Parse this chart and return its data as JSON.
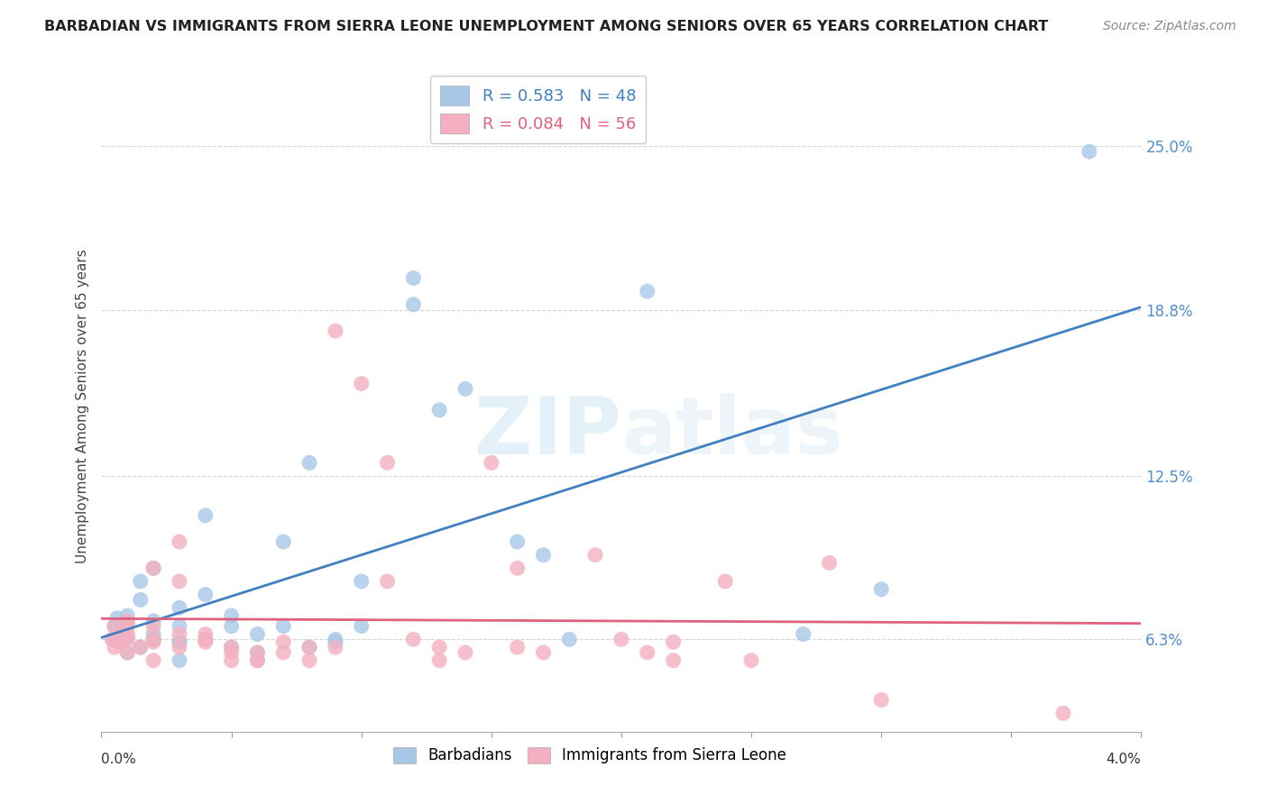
{
  "title": "BARBADIAN VS IMMIGRANTS FROM SIERRA LEONE UNEMPLOYMENT AMONG SENIORS OVER 65 YEARS CORRELATION CHART",
  "source": "Source: ZipAtlas.com",
  "ylabel": "Unemployment Among Seniors over 65 years",
  "y_ticks": [
    0.063,
    0.125,
    0.188,
    0.25
  ],
  "y_tick_labels": [
    "6.3%",
    "12.5%",
    "18.8%",
    "25.0%"
  ],
  "x_min": 0.0,
  "x_max": 0.04,
  "y_min": 0.028,
  "y_max": 0.275,
  "footer_labels": [
    "Barbadians",
    "Immigrants from Sierra Leone"
  ],
  "watermark": "ZIPatlas",
  "blue_R": 0.583,
  "blue_N": 48,
  "pink_R": 0.084,
  "pink_N": 56,
  "blue_scatter": [
    [
      0.0005,
      0.068
    ],
    [
      0.0005,
      0.063
    ],
    [
      0.0006,
      0.071
    ],
    [
      0.0007,
      0.065
    ],
    [
      0.0008,
      0.063
    ],
    [
      0.001,
      0.069
    ],
    [
      0.001,
      0.058
    ],
    [
      0.001,
      0.072
    ],
    [
      0.001,
      0.064
    ],
    [
      0.0015,
      0.06
    ],
    [
      0.0015,
      0.085
    ],
    [
      0.0015,
      0.078
    ],
    [
      0.002,
      0.063
    ],
    [
      0.002,
      0.07
    ],
    [
      0.002,
      0.09
    ],
    [
      0.002,
      0.065
    ],
    [
      0.003,
      0.062
    ],
    [
      0.003,
      0.068
    ],
    [
      0.003,
      0.055
    ],
    [
      0.003,
      0.075
    ],
    [
      0.003,
      0.062
    ],
    [
      0.004,
      0.11
    ],
    [
      0.004,
      0.063
    ],
    [
      0.004,
      0.08
    ],
    [
      0.005,
      0.068
    ],
    [
      0.005,
      0.06
    ],
    [
      0.005,
      0.072
    ],
    [
      0.006,
      0.065
    ],
    [
      0.006,
      0.058
    ],
    [
      0.007,
      0.1
    ],
    [
      0.007,
      0.068
    ],
    [
      0.008,
      0.13
    ],
    [
      0.008,
      0.06
    ],
    [
      0.009,
      0.062
    ],
    [
      0.009,
      0.063
    ],
    [
      0.01,
      0.085
    ],
    [
      0.01,
      0.068
    ],
    [
      0.012,
      0.2
    ],
    [
      0.012,
      0.19
    ],
    [
      0.013,
      0.15
    ],
    [
      0.014,
      0.158
    ],
    [
      0.016,
      0.1
    ],
    [
      0.017,
      0.095
    ],
    [
      0.018,
      0.063
    ],
    [
      0.021,
      0.195
    ],
    [
      0.027,
      0.065
    ],
    [
      0.03,
      0.082
    ],
    [
      0.038,
      0.248
    ]
  ],
  "pink_scatter": [
    [
      0.0004,
      0.063
    ],
    [
      0.0005,
      0.068
    ],
    [
      0.0005,
      0.06
    ],
    [
      0.0007,
      0.062
    ],
    [
      0.0008,
      0.065
    ],
    [
      0.001,
      0.07
    ],
    [
      0.001,
      0.058
    ],
    [
      0.001,
      0.065
    ],
    [
      0.001,
      0.063
    ],
    [
      0.001,
      0.068
    ],
    [
      0.0015,
      0.06
    ],
    [
      0.002,
      0.09
    ],
    [
      0.002,
      0.063
    ],
    [
      0.002,
      0.062
    ],
    [
      0.002,
      0.068
    ],
    [
      0.002,
      0.055
    ],
    [
      0.003,
      0.1
    ],
    [
      0.003,
      0.065
    ],
    [
      0.003,
      0.085
    ],
    [
      0.003,
      0.06
    ],
    [
      0.004,
      0.063
    ],
    [
      0.004,
      0.065
    ],
    [
      0.004,
      0.062
    ],
    [
      0.005,
      0.055
    ],
    [
      0.005,
      0.06
    ],
    [
      0.005,
      0.058
    ],
    [
      0.006,
      0.055
    ],
    [
      0.006,
      0.058
    ],
    [
      0.006,
      0.055
    ],
    [
      0.007,
      0.062
    ],
    [
      0.007,
      0.058
    ],
    [
      0.008,
      0.06
    ],
    [
      0.008,
      0.055
    ],
    [
      0.009,
      0.06
    ],
    [
      0.009,
      0.18
    ],
    [
      0.01,
      0.16
    ],
    [
      0.011,
      0.13
    ],
    [
      0.011,
      0.085
    ],
    [
      0.012,
      0.063
    ],
    [
      0.013,
      0.06
    ],
    [
      0.013,
      0.055
    ],
    [
      0.014,
      0.058
    ],
    [
      0.015,
      0.13
    ],
    [
      0.016,
      0.09
    ],
    [
      0.016,
      0.06
    ],
    [
      0.017,
      0.058
    ],
    [
      0.019,
      0.095
    ],
    [
      0.02,
      0.063
    ],
    [
      0.021,
      0.058
    ],
    [
      0.022,
      0.062
    ],
    [
      0.022,
      0.055
    ],
    [
      0.024,
      0.085
    ],
    [
      0.025,
      0.055
    ],
    [
      0.028,
      0.092
    ],
    [
      0.03,
      0.04
    ],
    [
      0.037,
      0.035
    ]
  ],
  "background_color": "#ffffff",
  "grid_color": "#cccccc",
  "blue_color": "#a8c8e8",
  "pink_color": "#f4b0c0",
  "blue_line_color": "#4080c0",
  "pink_line_color": "#e06080",
  "ytick_color": "#5090d0"
}
